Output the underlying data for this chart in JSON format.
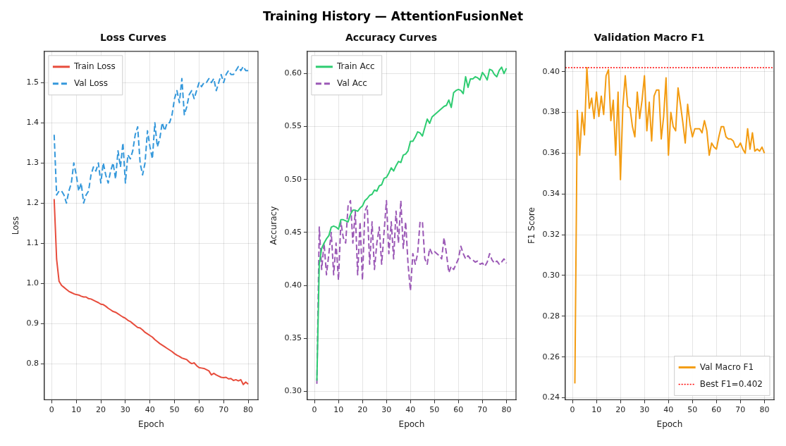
{
  "chart_data": [
    {
      "type": "line",
      "title": "Loss Curves",
      "xlabel": "Epoch",
      "ylabel": "Loss",
      "annotations": [
        "Training History — AttentionFusionNet"
      ],
      "x": [
        1,
        2,
        3,
        4,
        5,
        6,
        7,
        8,
        9,
        10,
        11,
        12,
        13,
        14,
        15,
        16,
        17,
        18,
        19,
        20,
        21,
        22,
        23,
        24,
        25,
        26,
        27,
        28,
        29,
        30,
        31,
        32,
        33,
        34,
        35,
        36,
        37,
        38,
        39,
        40,
        41,
        42,
        43,
        44,
        45,
        46,
        47,
        48,
        49,
        50,
        51,
        52,
        53,
        54,
        55,
        56,
        57,
        58,
        59,
        60,
        61,
        62,
        63,
        64,
        65,
        66,
        67,
        68,
        69,
        70,
        71,
        72,
        73,
        74,
        75,
        76,
        77,
        78,
        79,
        80
      ],
      "series": [
        {
          "name": "Train Loss",
          "color": "#e74c3c",
          "line_style": "solid",
          "values": [
            1.21,
            1.06,
            1.005,
            0.995,
            0.99,
            0.985,
            0.98,
            0.977,
            0.974,
            0.972,
            0.971,
            0.968,
            0.966,
            0.966,
            0.962,
            0.961,
            0.958,
            0.955,
            0.952,
            0.948,
            0.947,
            0.943,
            0.938,
            0.934,
            0.93,
            0.928,
            0.924,
            0.92,
            0.916,
            0.913,
            0.908,
            0.905,
            0.9,
            0.895,
            0.89,
            0.889,
            0.884,
            0.878,
            0.874,
            0.87,
            0.866,
            0.86,
            0.855,
            0.85,
            0.846,
            0.842,
            0.838,
            0.834,
            0.83,
            0.825,
            0.821,
            0.818,
            0.814,
            0.812,
            0.81,
            0.804,
            0.8,
            0.802,
            0.795,
            0.79,
            0.789,
            0.788,
            0.785,
            0.782,
            0.772,
            0.776,
            0.772,
            0.769,
            0.766,
            0.765,
            0.766,
            0.762,
            0.763,
            0.758,
            0.76,
            0.757,
            0.76,
            0.748,
            0.754,
            0.749
          ]
        },
        {
          "name": "Val Loss",
          "color": "#3498db",
          "line_style": "dashed",
          "values": [
            1.37,
            1.22,
            1.23,
            1.23,
            1.22,
            1.2,
            1.23,
            1.25,
            1.3,
            1.27,
            1.23,
            1.25,
            1.2,
            1.22,
            1.23,
            1.27,
            1.29,
            1.28,
            1.3,
            1.25,
            1.3,
            1.27,
            1.25,
            1.28,
            1.3,
            1.26,
            1.33,
            1.29,
            1.35,
            1.25,
            1.32,
            1.31,
            1.33,
            1.37,
            1.39,
            1.3,
            1.27,
            1.3,
            1.38,
            1.34,
            1.31,
            1.4,
            1.34,
            1.36,
            1.4,
            1.38,
            1.4,
            1.4,
            1.42,
            1.46,
            1.48,
            1.45,
            1.51,
            1.42,
            1.44,
            1.47,
            1.48,
            1.46,
            1.48,
            1.5,
            1.49,
            1.5,
            1.5,
            1.51,
            1.5,
            1.51,
            1.48,
            1.5,
            1.52,
            1.5,
            1.52,
            1.53,
            1.52,
            1.52,
            1.53,
            1.54,
            1.53,
            1.54,
            1.53,
            1.53
          ]
        }
      ],
      "xlim": [
        -3,
        84
      ],
      "xticks": [
        0,
        10,
        20,
        30,
        40,
        50,
        60,
        70,
        80
      ],
      "ylim": [
        0.71,
        1.578
      ],
      "yticks": [
        0.8,
        0.9,
        {
          "value": 1.0,
          "label": "1.0"
        },
        1.1,
        1.2,
        1.3,
        1.4,
        1.5
      ],
      "grid": true,
      "legend": "top left"
    },
    {
      "type": "line",
      "title": "Accuracy Curves",
      "xlabel": "Epoch",
      "ylabel": "Accuracy",
      "x": [
        1,
        2,
        3,
        4,
        5,
        6,
        7,
        8,
        9,
        10,
        11,
        12,
        13,
        14,
        15,
        16,
        17,
        18,
        19,
        20,
        21,
        22,
        23,
        24,
        25,
        26,
        27,
        28,
        29,
        30,
        31,
        32,
        33,
        34,
        35,
        36,
        37,
        38,
        39,
        40,
        41,
        42,
        43,
        44,
        45,
        46,
        47,
        48,
        49,
        50,
        51,
        52,
        53,
        54,
        55,
        56,
        57,
        58,
        59,
        60,
        61,
        62,
        63,
        64,
        65,
        66,
        67,
        68,
        69,
        70,
        71,
        72,
        73,
        74,
        75,
        76,
        77,
        78,
        79,
        80
      ],
      "series": [
        {
          "name": "Train Acc",
          "color": "#2ecc71",
          "line_style": "solid",
          "values": [
            0.31,
            0.42,
            0.435,
            0.44,
            0.444,
            0.447,
            0.455,
            0.456,
            0.455,
            0.453,
            0.462,
            0.462,
            0.461,
            0.46,
            0.467,
            0.471,
            0.471,
            0.47,
            0.473,
            0.475,
            0.48,
            0.482,
            0.485,
            0.486,
            0.49,
            0.489,
            0.494,
            0.495,
            0.501,
            0.502,
            0.506,
            0.511,
            0.508,
            0.513,
            0.517,
            0.516,
            0.523,
            0.524,
            0.527,
            0.536,
            0.536,
            0.54,
            0.545,
            0.544,
            0.541,
            0.549,
            0.557,
            0.553,
            0.559,
            0.561,
            0.563,
            0.565,
            0.567,
            0.569,
            0.57,
            0.575,
            0.568,
            0.582,
            0.584,
            0.585,
            0.584,
            0.581,
            0.597,
            0.587,
            0.595,
            0.595,
            0.597,
            0.596,
            0.594,
            0.601,
            0.598,
            0.594,
            0.604,
            0.603,
            0.599,
            0.597,
            0.603,
            0.606,
            0.6,
            0.605
          ]
        },
        {
          "name": "Val Acc",
          "color": "#9b59b6",
          "line_style": "dashed",
          "values": [
            0.307,
            0.455,
            0.415,
            0.44,
            0.41,
            0.43,
            0.45,
            0.41,
            0.44,
            0.405,
            0.46,
            0.445,
            0.44,
            0.475,
            0.48,
            0.44,
            0.47,
            0.41,
            0.46,
            0.405,
            0.47,
            0.475,
            0.42,
            0.46,
            0.415,
            0.44,
            0.455,
            0.42,
            0.45,
            0.48,
            0.43,
            0.46,
            0.425,
            0.47,
            0.44,
            0.48,
            0.435,
            0.46,
            0.42,
            0.395,
            0.43,
            0.42,
            0.43,
            0.46,
            0.46,
            0.425,
            0.42,
            0.435,
            0.43,
            0.432,
            0.43,
            0.428,
            0.425,
            0.445,
            0.43,
            0.412,
            0.418,
            0.415,
            0.42,
            0.425,
            0.437,
            0.43,
            0.425,
            0.428,
            0.425,
            0.424,
            0.422,
            0.423,
            0.42,
            0.421,
            0.418,
            0.422,
            0.43,
            0.424,
            0.421,
            0.423,
            0.42,
            0.422,
            0.425,
            0.421
          ]
        }
      ],
      "xlim": [
        -3,
        84
      ],
      "xticks": [
        0,
        10,
        20,
        30,
        40,
        50,
        60,
        70,
        80
      ],
      "ylim": [
        0.292,
        0.621
      ],
      "yticks": [
        {
          "value": 0.3,
          "label": "0.30"
        },
        0.35,
        {
          "value": 0.4,
          "label": "0.40"
        },
        0.45,
        {
          "value": 0.5,
          "label": "0.50"
        },
        0.55,
        {
          "value": 0.6,
          "label": "0.60"
        }
      ],
      "grid": true,
      "legend": "top left"
    },
    {
      "type": "line",
      "title": "Validation Macro F1",
      "xlabel": "Epoch",
      "ylabel": "F1 Score",
      "x": [
        1,
        2,
        3,
        4,
        5,
        6,
        7,
        8,
        9,
        10,
        11,
        12,
        13,
        14,
        15,
        16,
        17,
        18,
        19,
        20,
        21,
        22,
        23,
        24,
        25,
        26,
        27,
        28,
        29,
        30,
        31,
        32,
        33,
        34,
        35,
        36,
        37,
        38,
        39,
        40,
        41,
        42,
        43,
        44,
        45,
        46,
        47,
        48,
        49,
        50,
        51,
        52,
        53,
        54,
        55,
        56,
        57,
        58,
        59,
        60,
        61,
        62,
        63,
        64,
        65,
        66,
        67,
        68,
        69,
        70,
        71,
        72,
        73,
        74,
        75,
        76,
        77,
        78,
        79,
        80
      ],
      "series": [
        {
          "name": "Val Macro F1",
          "color": "#f39c12",
          "line_style": "solid",
          "values": [
            0.247,
            0.381,
            0.359,
            0.38,
            0.369,
            0.402,
            0.382,
            0.387,
            0.377,
            0.39,
            0.378,
            0.388,
            0.379,
            0.398,
            0.401,
            0.376,
            0.386,
            0.359,
            0.39,
            0.347,
            0.383,
            0.398,
            0.383,
            0.382,
            0.373,
            0.368,
            0.39,
            0.377,
            0.386,
            0.398,
            0.371,
            0.385,
            0.366,
            0.388,
            0.391,
            0.391,
            0.367,
            0.378,
            0.397,
            0.359,
            0.38,
            0.373,
            0.371,
            0.392,
            0.384,
            0.375,
            0.365,
            0.384,
            0.374,
            0.368,
            0.372,
            0.372,
            0.372,
            0.37,
            0.376,
            0.371,
            0.359,
            0.365,
            0.363,
            0.362,
            0.368,
            0.373,
            0.373,
            0.368,
            0.367,
            0.367,
            0.366,
            0.363,
            0.363,
            0.365,
            0.362,
            0.36,
            0.372,
            0.362,
            0.37,
            0.361,
            0.362,
            0.361,
            0.363,
            0.36
          ]
        }
      ],
      "ref_lines": [
        {
          "axis": "y",
          "value": 0.402,
          "label": "Best F1=0.402",
          "color": "#ff0000",
          "line_style": "dotted"
        }
      ],
      "xlim": [
        -3,
        84
      ],
      "xticks": [
        0,
        10,
        20,
        30,
        40,
        50,
        60,
        70,
        80
      ],
      "ylim": [
        0.239,
        0.41
      ],
      "yticks": [
        0.24,
        0.26,
        0.28,
        {
          "value": 0.3,
          "label": "0.30"
        },
        0.32,
        0.34,
        0.36,
        0.38,
        {
          "value": 0.4,
          "label": "0.40"
        }
      ],
      "grid": true,
      "legend": "bottom right"
    }
  ]
}
